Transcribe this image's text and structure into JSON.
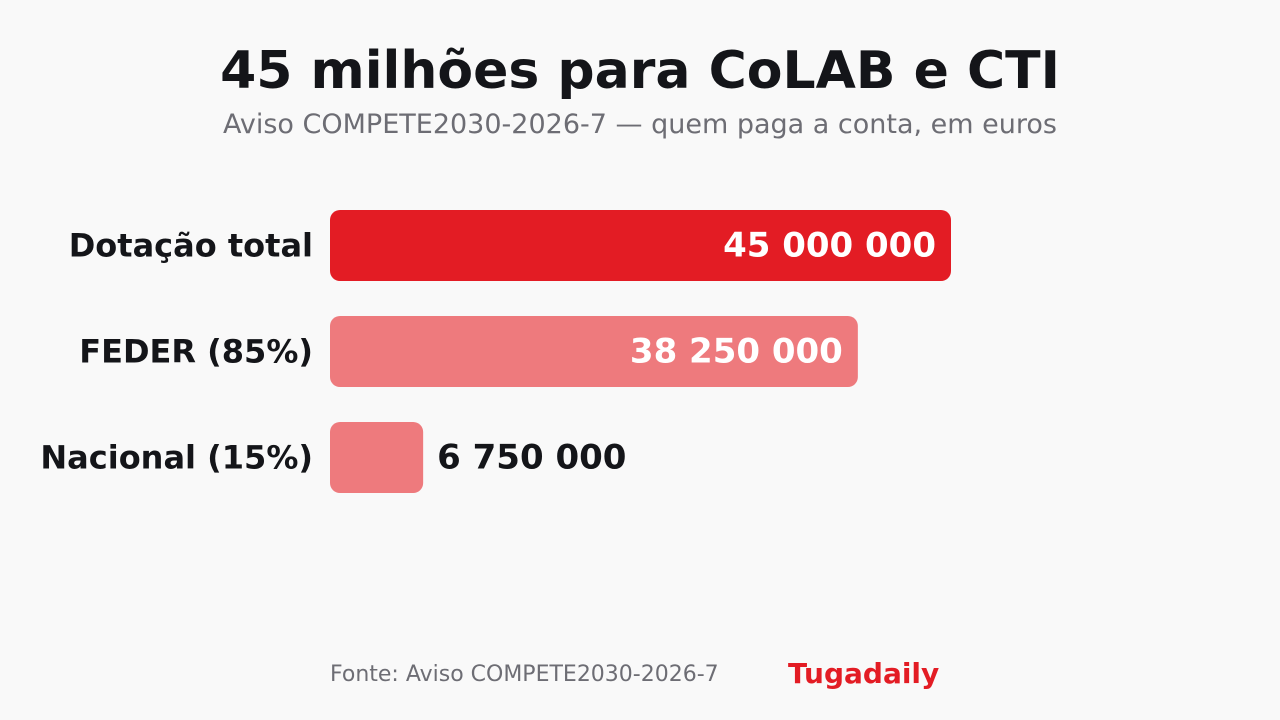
{
  "title": "45 milhões para CoLAB e CTI",
  "subtitle": "Aviso COMPETE2030-2026-7 — quem paga a conta, em euros",
  "footer": {
    "source": "Fonte: Aviso COMPETE2030-2026-7",
    "brand": "Tugadaily"
  },
  "colors": {
    "primary_bar": "#e31c24",
    "secondary_bar": "#ee7a7d",
    "brand": "#e31c24",
    "text_dark": "#141519",
    "text_muted": "#6d6d74"
  },
  "chart_data": {
    "type": "bar",
    "orientation": "horizontal",
    "categories": [
      "Dotação total",
      "FEDER (85%)",
      "Nacional (15%)"
    ],
    "values": [
      45000000,
      38250000,
      6750000
    ],
    "value_labels": [
      "45 000 000",
      "38 250 000",
      "6 750 000"
    ],
    "xlim": [
      0,
      45000000
    ],
    "grid": false
  }
}
